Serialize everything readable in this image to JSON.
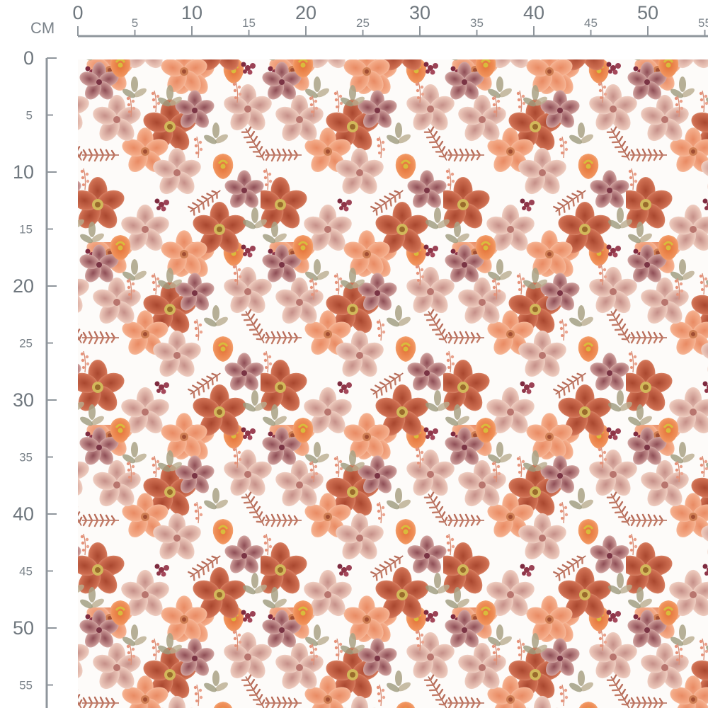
{
  "ruler": {
    "unit": "CM",
    "horizontal": {
      "labels": [
        "0",
        "5",
        "10",
        "15",
        "20",
        "25",
        "30",
        "35",
        "40",
        "45",
        "50",
        "55"
      ],
      "major": [
        "0",
        "10",
        "20",
        "30",
        "40",
        "50"
      ]
    },
    "vertical": {
      "labels": [
        "0",
        "5",
        "10",
        "15",
        "20",
        "25",
        "30",
        "35",
        "40",
        "45",
        "50",
        "55"
      ],
      "major": [
        "0",
        "10",
        "20",
        "30",
        "40",
        "50"
      ]
    }
  },
  "fabric": {
    "pattern": "watercolor floral print",
    "colors": {
      "background": "#fdfbf9",
      "rust": "#c9674a",
      "peach": "#f2a27e",
      "blush": "#e9c2b4",
      "mauve": "#c6908c",
      "burgundy": "#8e3548",
      "sage": "#a7a083",
      "orange": "#ee8a4e",
      "center": "#c9b04a"
    }
  }
}
